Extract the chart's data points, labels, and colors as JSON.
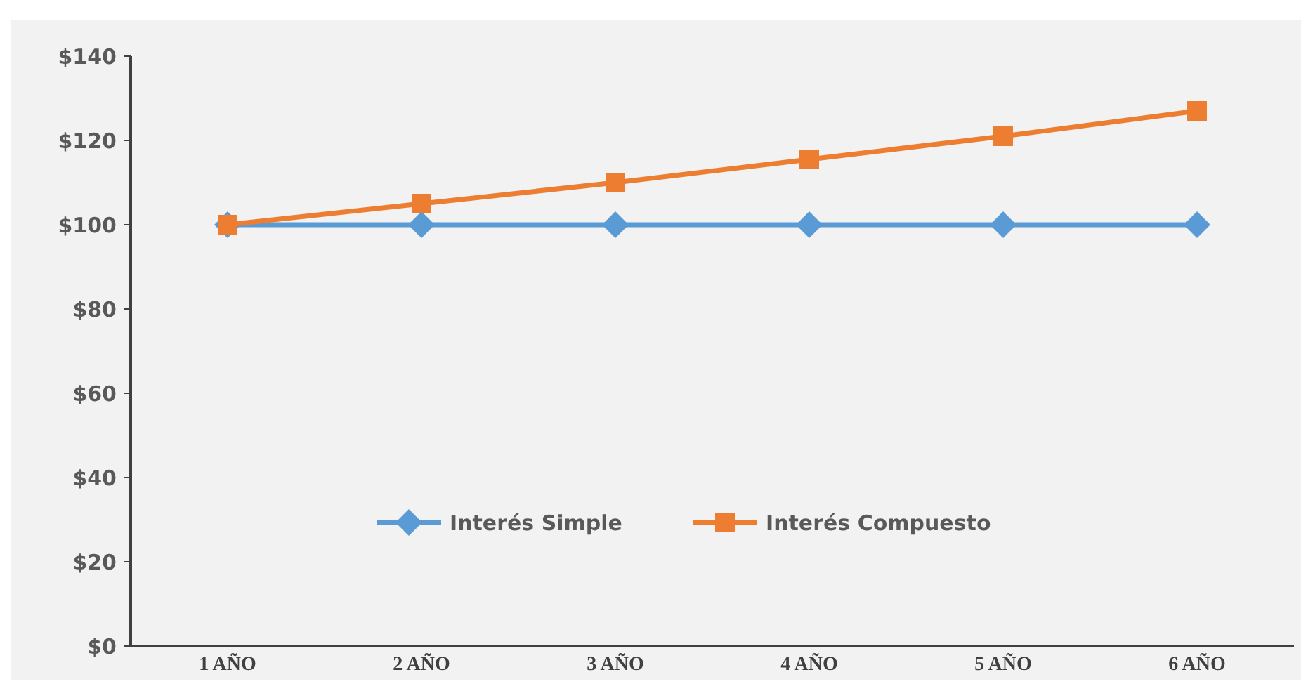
{
  "chart_data": {
    "type": "line",
    "categories": [
      "1 AÑO",
      "2 AÑO",
      "3 AÑO",
      "4 AÑO",
      "5 AÑO",
      "6 AÑO"
    ],
    "series": [
      {
        "name": "Interés Simple",
        "color": "#5b9bd5",
        "marker": "diamond",
        "values": [
          100,
          100,
          100,
          100,
          100,
          100
        ]
      },
      {
        "name": "Interés Compuesto",
        "color": "#ed7d31",
        "marker": "square",
        "values": [
          100,
          105,
          110,
          115.5,
          121,
          127
        ]
      }
    ],
    "ylim": [
      0,
      140
    ],
    "yticks": [
      {
        "value": 0,
        "label": "$0"
      },
      {
        "value": 20,
        "label": "$20"
      },
      {
        "value": 40,
        "label": "$40"
      },
      {
        "value": 60,
        "label": "$60"
      },
      {
        "value": 80,
        "label": "$80"
      },
      {
        "value": 100,
        "label": "$100"
      },
      {
        "value": 120,
        "label": "$120"
      },
      {
        "value": 140,
        "label": "$140"
      }
    ],
    "grid": false,
    "legend": "bottom",
    "line_style": "solid"
  }
}
